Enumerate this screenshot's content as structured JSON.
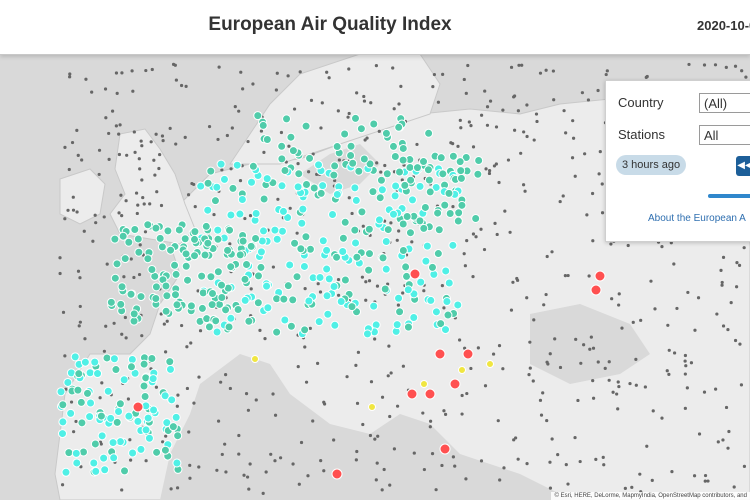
{
  "header": {
    "title": "European Air Quality Index",
    "date": "2020-10-0"
  },
  "filters": {
    "country_label": "Country",
    "country_value": "(All)",
    "stations_label": "Stations",
    "stations_value": "All",
    "time_badge": "3 hours ago",
    "play_icon": "rewind-icon",
    "about_link": "About the European A"
  },
  "map": {
    "attribution": "© Esri, HERE, DeLorme, MapmyIndia, OpenStreetMap contributors, and",
    "colors": {
      "water": "#d9d9d9",
      "land": "#ececec",
      "good": "#50f0e6",
      "fair": "#50ccaa",
      "moderate": "#f0e641",
      "poor": "#ff5050",
      "very_poor": "#96ffff"
    }
  }
}
